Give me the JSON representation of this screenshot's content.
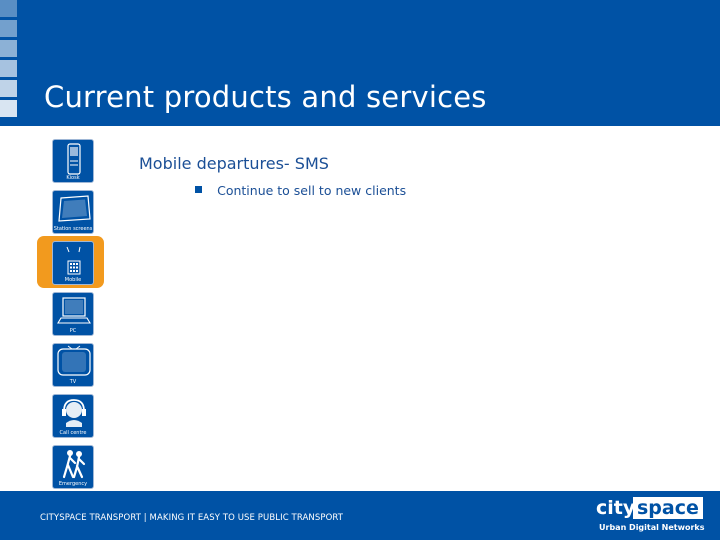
{
  "slide": {
    "title": "Current products and services",
    "content_title": "Mobile departures- SMS",
    "bullets": [
      "Continue to sell to new clients"
    ]
  },
  "sidebar": {
    "selected": "mobile",
    "items": [
      {
        "id": "kiosk",
        "label": "Kiosk",
        "icon": "kiosk-icon"
      },
      {
        "id": "station-screens",
        "label": "Station screens",
        "icon": "station-screen-icon"
      },
      {
        "id": "mobile",
        "label": "Mobile",
        "icon": "mobile-phone-icon"
      },
      {
        "id": "pc",
        "label": "PC",
        "icon": "pc-laptop-icon"
      },
      {
        "id": "tv",
        "label": "TV",
        "icon": "tv-icon"
      },
      {
        "id": "call-centre",
        "label": "Call centre",
        "icon": "headset-icon"
      },
      {
        "id": "emergency",
        "label": "Emergency",
        "icon": "people-walking-icon"
      }
    ]
  },
  "footer": {
    "text": "CITYSPACE TRANSPORT | MAKING IT EASY TO USE PUBLIC TRANSPORT",
    "logo_word_1": "city",
    "logo_word_2": "space",
    "logo_tagline": "Urban Digital Networks"
  },
  "colors": {
    "brand_blue": "#0052a5",
    "highlight_orange": "#f29a1e",
    "text_blue": "#1b4f96"
  }
}
